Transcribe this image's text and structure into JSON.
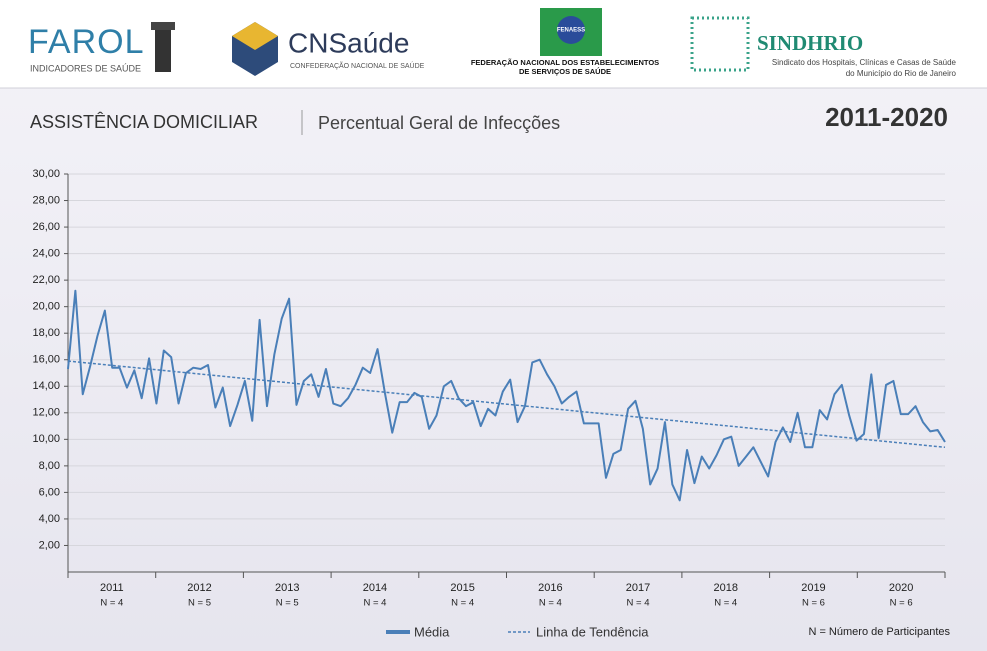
{
  "header": {
    "farol": "FAROL",
    "farol_sub": "INDICADORES DE SAÚDE",
    "cnsaude": "CNSaúde",
    "cnsaude_sub": "CONFEDERAÇÃO NACIONAL DE SAÚDE",
    "fenaess": "FENAESS",
    "fenaess_sub1": "FEDERAÇÃO NACIONAL DOS ESTABELECIMENTOS",
    "fenaess_sub2": "DE SERVIÇOS DE SAÚDE",
    "sindhrio": "SINDHRIO",
    "sindhrio_sub1": "Sindicato dos Hospitais, Clínicas e Casas de Saúde",
    "sindhrio_sub2": "do Município do Rio de Janeiro"
  },
  "chart_data": {
    "type": "line",
    "title": "ASSISTÊNCIA DOMICILIAR",
    "subtitle": "Percentual Geral de Infecções",
    "period": "2011-2020",
    "note": "N = Número de Participantes",
    "ylim": [
      0,
      30
    ],
    "yticks": [
      {
        "value": 2,
        "label": "2,00"
      },
      {
        "value": 4,
        "label": "4,00"
      },
      {
        "value": 6,
        "label": "6,00"
      },
      {
        "value": 8,
        "label": "8,00"
      },
      {
        "value": 10,
        "label": "10,00"
      },
      {
        "value": 12,
        "label": "12,00"
      },
      {
        "value": 14,
        "label": "14,00"
      },
      {
        "value": 16,
        "label": "16,00"
      },
      {
        "value": 18,
        "label": "18,00"
      },
      {
        "value": 20,
        "label": "20,00"
      },
      {
        "value": 22,
        "label": "22,00"
      },
      {
        "value": 24,
        "label": "24,00"
      },
      {
        "value": 26,
        "label": "26,00"
      },
      {
        "value": 28,
        "label": "28,00"
      },
      {
        "value": 30,
        "label": "30,00"
      }
    ],
    "grid": true,
    "groups": [
      {
        "label": "2011",
        "note": "N = 4"
      },
      {
        "label": "2012",
        "note": "N = 5"
      },
      {
        "label": "2013",
        "note": "N = 5"
      },
      {
        "label": "2014",
        "note": "N = 4"
      },
      {
        "label": "2015",
        "note": "N = 4"
      },
      {
        "label": "2016",
        "note": "N = 4"
      },
      {
        "label": "2017",
        "note": "N = 4"
      },
      {
        "label": "2018",
        "note": "N = 4"
      },
      {
        "label": "2019",
        "note": "N = 6"
      },
      {
        "label": "2020",
        "note": "N = 6"
      }
    ],
    "series": [
      {
        "name": "Média",
        "color": "#4a7fb8",
        "values": [
          15.3,
          21.2,
          13.4,
          15.5,
          17.8,
          19.7,
          15.4,
          15.4,
          13.9,
          15.2,
          13.1,
          16.1,
          12.7,
          16.7,
          16.2,
          12.7,
          15.0,
          15.4,
          15.3,
          15.6,
          12.4,
          13.9,
          11.0,
          12.6,
          14.4,
          11.4,
          19.0,
          12.5,
          16.4,
          19.1,
          20.6,
          12.6,
          14.4,
          14.9,
          13.2,
          15.3,
          12.7,
          12.5,
          13.1,
          14.1,
          15.4,
          15.0,
          16.8,
          13.5,
          10.5,
          12.8,
          12.8,
          13.5,
          13.2,
          10.8,
          11.8,
          14.0,
          14.4,
          13.1,
          12.5,
          12.8,
          11.0,
          12.3,
          11.8,
          13.6,
          14.5,
          11.3,
          12.5,
          15.8,
          16.0,
          14.9,
          14.0,
          12.7,
          13.2,
          13.6,
          11.2,
          11.2,
          11.2,
          7.1,
          8.9,
          9.2,
          12.3,
          12.9,
          10.8,
          6.6,
          7.8,
          11.3,
          6.6,
          5.4,
          9.2,
          6.7,
          8.7,
          7.8,
          8.8,
          10.0,
          10.2,
          8.0,
          8.7,
          9.4,
          8.3,
          7.2,
          9.8,
          10.9,
          9.8,
          12.0,
          9.4,
          9.4,
          12.2,
          11.5,
          13.4,
          14.1,
          11.8,
          9.9,
          10.4,
          14.9,
          10.1,
          14.1,
          14.4,
          11.9,
          11.9,
          12.5,
          11.3,
          10.6,
          10.7,
          9.8
        ]
      }
    ],
    "trend": {
      "name": "Linha de Tendência",
      "color": "#4a7fb8",
      "start": 15.9,
      "end": 9.4
    }
  }
}
